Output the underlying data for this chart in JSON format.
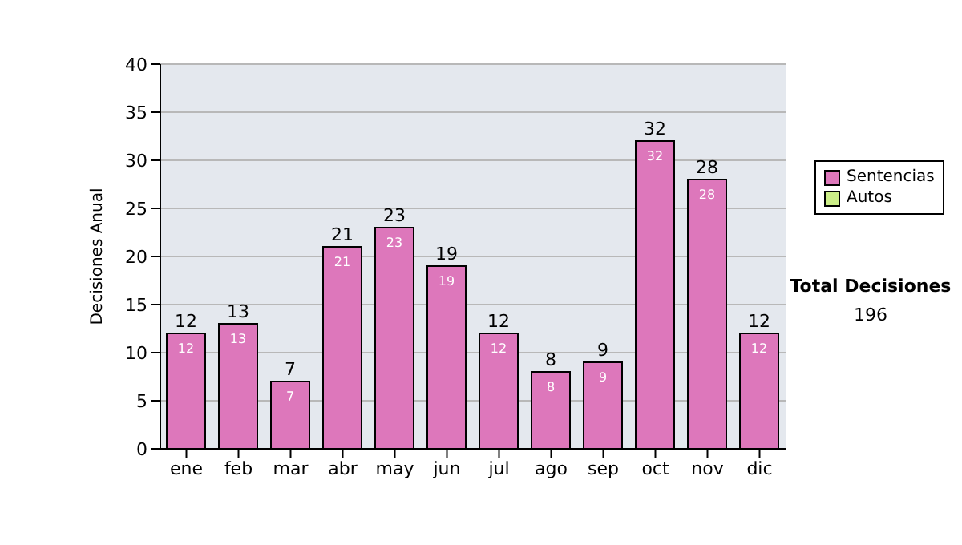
{
  "chart_data": {
    "type": "bar",
    "ylabel": "Decisiones Anual",
    "categories": [
      "ene",
      "feb",
      "mar",
      "abr",
      "may",
      "jun",
      "jul",
      "ago",
      "sep",
      "oct",
      "nov",
      "dic"
    ],
    "series": [
      {
        "name": "Sentencias",
        "color": "#dd77bb",
        "values": [
          12,
          13,
          7,
          21,
          23,
          19,
          12,
          8,
          9,
          32,
          28,
          12
        ],
        "value_labels": [
          "12",
          "13",
          "7",
          "21",
          "23",
          "19",
          "12",
          "8",
          "9",
          "32",
          "28",
          "12"
        ]
      },
      {
        "name": "Autos",
        "color": "#ccee88",
        "values": [
          0,
          0,
          0,
          0,
          0,
          0,
          0,
          0,
          0,
          0,
          0,
          0
        ]
      }
    ],
    "stacked": true,
    "totals": [
      "12",
      "13",
      "7",
      "21",
      "23",
      "19",
      "12",
      "8",
      "9",
      "32",
      "28",
      "12"
    ],
    "ylim": [
      0,
      40
    ],
    "yticks": [
      0,
      5,
      10,
      15,
      20,
      25,
      30,
      35,
      40
    ],
    "grid": "y",
    "legend": "right",
    "annotations": [
      "Total Decisiones",
      "196"
    ]
  }
}
